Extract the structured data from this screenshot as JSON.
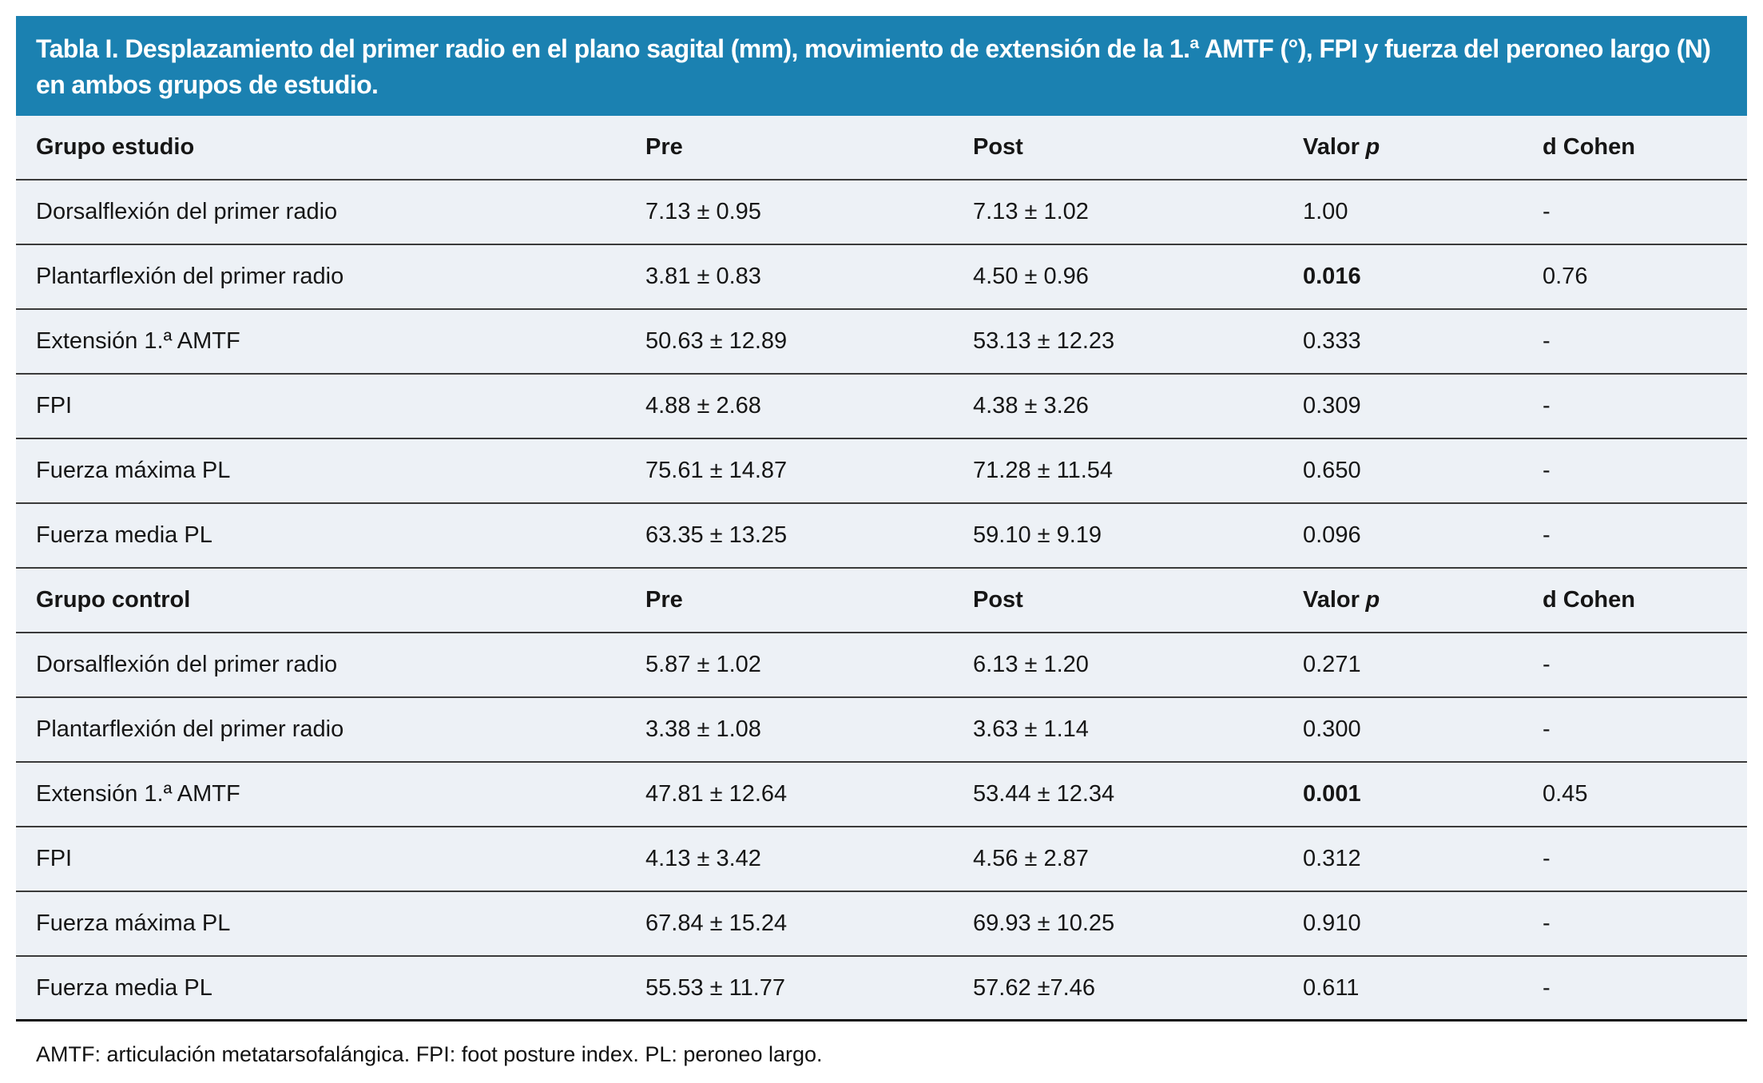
{
  "table": {
    "title": "Tabla I. Desplazamiento del primer radio en el plano sagital (mm), movimiento de extensión de la 1.ª AMTF (°), FPI y fuerza del peroneo largo (N) en ambos grupos de estudio.",
    "footnote": "AMTF: articulación metatarsofalángica. FPI: foot posture index. PL: peroneo largo.",
    "columns": {
      "pre": "Pre",
      "post": "Post",
      "valor": "Valor",
      "p": "p",
      "d_cohen": "d Cohen"
    },
    "colors": {
      "title_bg": "#1B81B1",
      "title_text": "#FFFFFF",
      "row_bg": "#EDF1F6",
      "separator": "#3A3A3A"
    },
    "groups": [
      {
        "name": "Grupo estudio",
        "rows": [
          {
            "label": "Dorsalflexión del primer radio",
            "pre": "7.13 ± 0.95",
            "post": "7.13 ± 1.02",
            "p": "1.00",
            "d": "-"
          },
          {
            "label": "Plantarflexión del primer radio",
            "pre": "3.81 ± 0.83",
            "post": "4.50 ± 0.96",
            "p": "0.016",
            "d": "0.76"
          },
          {
            "label": "Extensión 1.ª AMTF",
            "pre": "50.63 ± 12.89",
            "post": "53.13 ± 12.23",
            "p": "0.333",
            "d": "-"
          },
          {
            "label": "FPI",
            "pre": "4.88 ± 2.68",
            "post": "4.38 ± 3.26",
            "p": "0.309",
            "d": "-"
          },
          {
            "label": "Fuerza máxima PL",
            "pre": "75.61 ± 14.87",
            "post": "71.28 ± 11.54",
            "p": "0.650",
            "d": "-"
          },
          {
            "label": "Fuerza media PL",
            "pre": "63.35 ± 13.25",
            "post": "59.10 ± 9.19",
            "p": "0.096",
            "d": "-"
          }
        ]
      },
      {
        "name": "Grupo control",
        "rows": [
          {
            "label": "Dorsalflexión del primer radio",
            "pre": "5.87 ± 1.02",
            "post": "6.13 ± 1.20",
            "p": "0.271",
            "d": "-"
          },
          {
            "label": "Plantarflexión del primer radio",
            "pre": "3.38 ± 1.08",
            "post": "3.63 ± 1.14",
            "p": "0.300",
            "d": "-"
          },
          {
            "label": "Extensión 1.ª AMTF",
            "pre": "47.81 ± 12.64",
            "post": "53.44 ± 12.34",
            "p": "0.001",
            "d": "0.45"
          },
          {
            "label": "FPI",
            "pre": "4.13 ± 3.42",
            "post": "4.56 ± 2.87",
            "p": "0.312",
            "d": "-"
          },
          {
            "label": "Fuerza máxima PL",
            "pre": "67.84 ± 15.24",
            "post": "69.93 ± 10.25",
            "p": "0.910",
            "d": "-"
          },
          {
            "label": "Fuerza media PL",
            "pre": "55.53 ± 11.77",
            "post": "57.62 ±7.46",
            "p": "0.611",
            "d": "-"
          }
        ]
      }
    ]
  }
}
